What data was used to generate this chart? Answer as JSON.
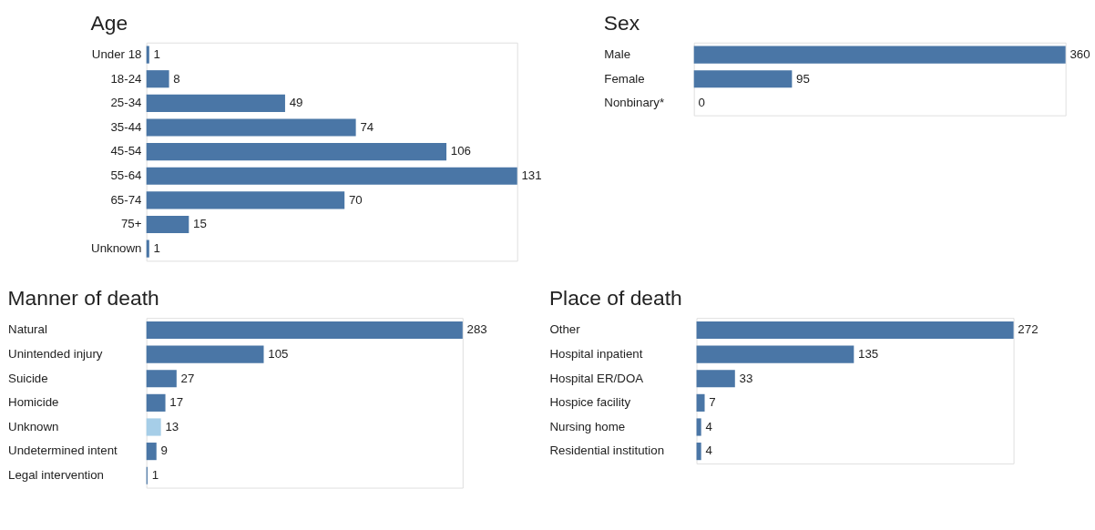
{
  "chart_data": [
    {
      "type": "bar",
      "orientation": "horizontal",
      "title": "Age",
      "categories": [
        "Under 18",
        "18-24",
        "25-34",
        "35-44",
        "45-54",
        "55-64",
        "65-74",
        "75+",
        "Unknown"
      ],
      "values": [
        1,
        8,
        49,
        74,
        106,
        131,
        70,
        15,
        1
      ],
      "colors": [
        "#4a76a6",
        "#4a76a6",
        "#4a76a6",
        "#4a76a6",
        "#4a76a6",
        "#4a76a6",
        "#4a76a6",
        "#4a76a6",
        "#4a76a6"
      ],
      "data_labels": true,
      "tick_labels": "y"
    },
    {
      "type": "bar",
      "orientation": "horizontal",
      "title": "Sex",
      "categories": [
        "Male",
        "Female",
        "Nonbinary*"
      ],
      "values": [
        360,
        95,
        0
      ],
      "colors": [
        "#4a76a6",
        "#4a76a6",
        "#4a76a6"
      ],
      "data_labels": true,
      "tick_labels": "y"
    },
    {
      "type": "bar",
      "orientation": "horizontal",
      "title": "Manner of death",
      "categories": [
        "Natural",
        "Unintended injury",
        "Suicide",
        "Homicide",
        "Unknown",
        "Undetermined intent",
        "Legal intervention"
      ],
      "values": [
        283,
        105,
        27,
        17,
        13,
        9,
        1
      ],
      "colors": [
        "#4a76a6",
        "#4a76a6",
        "#4a76a6",
        "#4a76a6",
        "#a6cee8",
        "#4a76a6",
        "#4a76a6"
      ],
      "data_labels": true,
      "tick_labels": "y"
    },
    {
      "type": "bar",
      "orientation": "horizontal",
      "title": "Place of death",
      "categories": [
        "Other",
        "Hospital inpatient",
        "Hospital ER/DOA",
        "Hospice facility",
        "Nursing home",
        "Residential institution"
      ],
      "values": [
        272,
        135,
        33,
        7,
        4,
        4
      ],
      "colors": [
        "#4a76a6",
        "#4a76a6",
        "#4a76a6",
        "#4a76a6",
        "#4a76a6",
        "#4a76a6"
      ],
      "data_labels": true,
      "tick_labels": "y"
    }
  ]
}
